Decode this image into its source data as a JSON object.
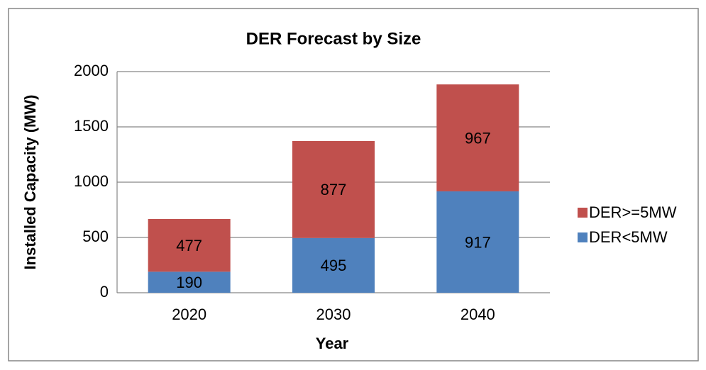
{
  "chart_data": {
    "type": "stacked_bar",
    "title": "DER Forecast by Size",
    "x_label": "Year",
    "y_label": "Installed Capacity (MW)",
    "categories": [
      "2020",
      "2030",
      "2040"
    ],
    "series": [
      {
        "name": "DER<5MW",
        "color": "#4f81bd",
        "values": [
          190,
          495,
          917
        ]
      },
      {
        "name": "DER>=5MW",
        "color": "#c0504d",
        "values": [
          477,
          877,
          967
        ]
      }
    ],
    "ylim": [
      0,
      2000
    ],
    "yticks": [
      0,
      500,
      1000,
      1500,
      2000
    ],
    "grid": true,
    "legend": "right"
  }
}
